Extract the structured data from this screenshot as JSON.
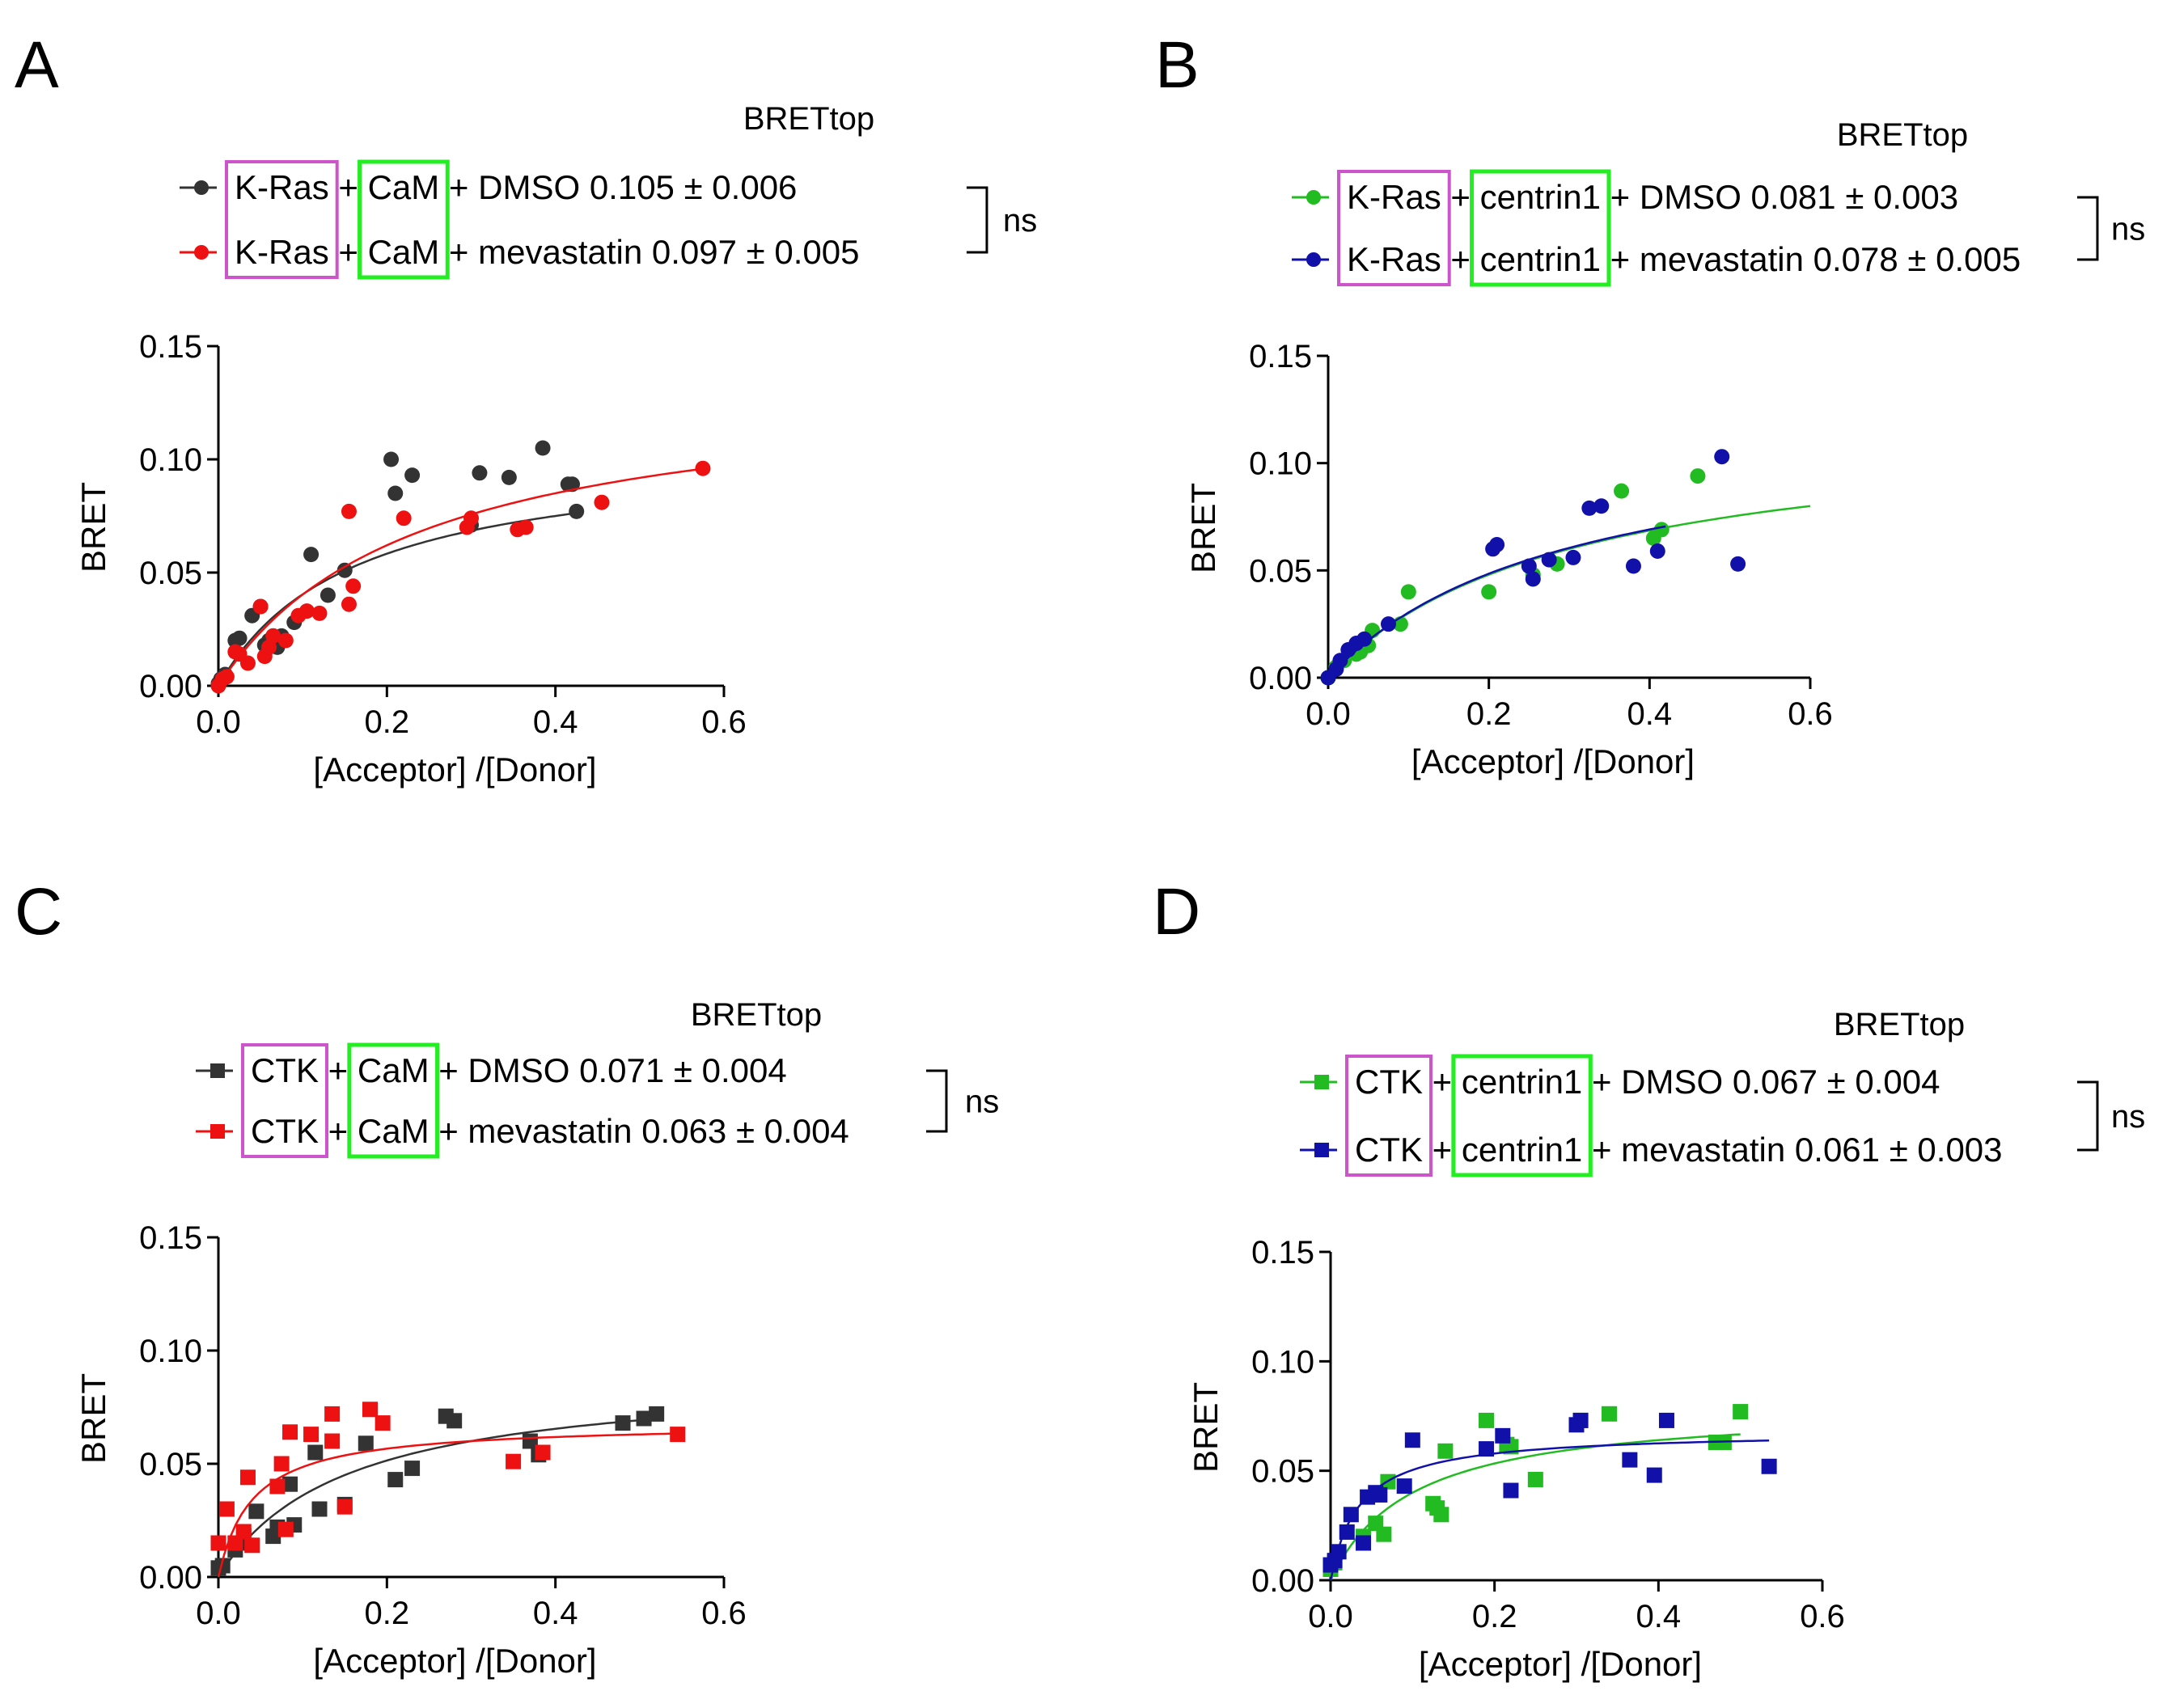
{
  "figure": {
    "axis_label_x": "[Acceptor] /[Donor]",
    "axis_label_y": "BRET",
    "column_label": "BRETtop",
    "significance": "ns"
  },
  "chart_data": [
    {
      "panel": "A",
      "type": "scatter",
      "title": "BRETtop",
      "xlabel": "[Acceptor] /[Donor]",
      "ylabel": "BRET",
      "xlim": [
        0,
        0.6
      ],
      "ylim": [
        0,
        0.15
      ],
      "xticks": [
        "0.0",
        "0.2",
        "0.4",
        "0.6"
      ],
      "yticks": [
        "0.00",
        "0.05",
        "0.10",
        "0.15"
      ],
      "marker": "circle",
      "significance": "ns",
      "legend": [
        {
          "donor": "K-Ras",
          "sep1": "+",
          "acceptor": "CaM",
          "treatment": "+ DMSO",
          "brettop": "0.105 ± 0.006"
        },
        {
          "donor": "K-Ras",
          "sep1": "+",
          "acceptor": "CaM",
          "treatment": "+ mevastatin",
          "brettop": "0.097 ± 0.005"
        }
      ],
      "series": [
        {
          "name": "K-Ras + CaM + DMSO",
          "color": "#333333",
          "fit": {
            "bmax": 0.105,
            "kd": 0.16,
            "xmax": 0.42
          },
          "points": [
            [
              0.0,
              0.001
            ],
            [
              0.003,
              0.003
            ],
            [
              0.008,
              0.005
            ],
            [
              0.02,
              0.02
            ],
            [
              0.025,
              0.021
            ],
            [
              0.04,
              0.031
            ],
            [
              0.05,
              0.035
            ],
            [
              0.055,
              0.018
            ],
            [
              0.06,
              0.02
            ],
            [
              0.065,
              0.022
            ],
            [
              0.07,
              0.017
            ],
            [
              0.075,
              0.022
            ],
            [
              0.09,
              0.028
            ],
            [
              0.11,
              0.058
            ],
            [
              0.13,
              0.04
            ],
            [
              0.15,
              0.051
            ],
            [
              0.205,
              0.1
            ],
            [
              0.21,
              0.085
            ],
            [
              0.23,
              0.093
            ],
            [
              0.3,
              0.071
            ],
            [
              0.31,
              0.094
            ],
            [
              0.345,
              0.092
            ],
            [
              0.385,
              0.105
            ],
            [
              0.415,
              0.089
            ],
            [
              0.42,
              0.089
            ],
            [
              0.425,
              0.077
            ]
          ]
        },
        {
          "name": "K-Ras + CaM + mevastatin",
          "color": "#ee1111",
          "fit": {
            "bmax": 0.135,
            "kd": 0.235,
            "xmax": 0.58
          },
          "points": [
            [
              0.0,
              0.0
            ],
            [
              0.005,
              0.003
            ],
            [
              0.01,
              0.004
            ],
            [
              0.02,
              0.015
            ],
            [
              0.025,
              0.014
            ],
            [
              0.035,
              0.01
            ],
            [
              0.05,
              0.035
            ],
            [
              0.055,
              0.013
            ],
            [
              0.06,
              0.017
            ],
            [
              0.065,
              0.022
            ],
            [
              0.08,
              0.02
            ],
            [
              0.095,
              0.031
            ],
            [
              0.105,
              0.033
            ],
            [
              0.12,
              0.032
            ],
            [
              0.155,
              0.077
            ],
            [
              0.155,
              0.036
            ],
            [
              0.16,
              0.044
            ],
            [
              0.22,
              0.074
            ],
            [
              0.295,
              0.07
            ],
            [
              0.3,
              0.074
            ],
            [
              0.355,
              0.069
            ],
            [
              0.365,
              0.07
            ],
            [
              0.455,
              0.081
            ],
            [
              0.575,
              0.096
            ]
          ]
        }
      ]
    },
    {
      "panel": "B",
      "type": "scatter",
      "title": "BRETtop",
      "xlabel": "[Acceptor] /[Donor]",
      "ylabel": "BRET",
      "xlim": [
        0,
        0.6
      ],
      "ylim": [
        0,
        0.15
      ],
      "xticks": [
        "0.0",
        "0.2",
        "0.4",
        "0.6"
      ],
      "yticks": [
        "0.00",
        "0.05",
        "0.10",
        "0.15"
      ],
      "marker": "circle",
      "significance": "ns",
      "legend": [
        {
          "donor": "K-Ras",
          "sep1": "+",
          "acceptor": "centrin1",
          "treatment": "+ DMSO",
          "brettop": "0.081 ± 0.003"
        },
        {
          "donor": "K-Ras",
          "sep1": "+",
          "acceptor": "centrin1",
          "treatment": "+ mevastatin",
          "brettop": "0.078 ± 0.005"
        }
      ],
      "series": [
        {
          "name": "K-Ras + centrin1 + DMSO",
          "color": "#22bb22",
          "fit": {
            "bmax": 0.12,
            "kd": 0.3,
            "xmax": 0.6
          },
          "points": [
            [
              0.0,
              0.0
            ],
            [
              0.01,
              0.005
            ],
            [
              0.02,
              0.008
            ],
            [
              0.035,
              0.011
            ],
            [
              0.04,
              0.012
            ],
            [
              0.05,
              0.015
            ],
            [
              0.055,
              0.022
            ],
            [
              0.09,
              0.025
            ],
            [
              0.1,
              0.04
            ],
            [
              0.2,
              0.04
            ],
            [
              0.255,
              0.048
            ],
            [
              0.285,
              0.053
            ],
            [
              0.365,
              0.087
            ],
            [
              0.405,
              0.065
            ],
            [
              0.415,
              0.069
            ],
            [
              0.46,
              0.094
            ]
          ]
        },
        {
          "name": "K-Ras + centrin1 + mevastatin",
          "color": "#1111aa",
          "fit": {
            "bmax": 0.12,
            "kd": 0.295,
            "xmax": 0.42
          },
          "points": [
            [
              0.0,
              0.0
            ],
            [
              0.01,
              0.004
            ],
            [
              0.015,
              0.008
            ],
            [
              0.025,
              0.013
            ],
            [
              0.035,
              0.016
            ],
            [
              0.045,
              0.018
            ],
            [
              0.075,
              0.025
            ],
            [
              0.205,
              0.06
            ],
            [
              0.21,
              0.062
            ],
            [
              0.25,
              0.052
            ],
            [
              0.255,
              0.046
            ],
            [
              0.275,
              0.055
            ],
            [
              0.305,
              0.056
            ],
            [
              0.325,
              0.079
            ],
            [
              0.34,
              0.08
            ],
            [
              0.38,
              0.052
            ],
            [
              0.41,
              0.059
            ],
            [
              0.49,
              0.103
            ],
            [
              0.51,
              0.053
            ]
          ]
        }
      ]
    },
    {
      "panel": "C",
      "type": "scatter",
      "title": "BRETtop",
      "xlabel": "[Acceptor] /[Donor]",
      "ylabel": "BRET",
      "xlim": [
        0,
        0.6
      ],
      "ylim": [
        0,
        0.15
      ],
      "xticks": [
        "0.0",
        "0.2",
        "0.4",
        "0.6"
      ],
      "yticks": [
        "0.00",
        "0.05",
        "0.10",
        "0.15"
      ],
      "marker": "square",
      "significance": "ns",
      "legend": [
        {
          "donor": "CTK",
          "sep1": "+",
          "acceptor": "CaM",
          "treatment": "+ DMSO",
          "brettop": "0.071 ± 0.004"
        },
        {
          "donor": "CTK",
          "sep1": "+",
          "acceptor": "CaM",
          "treatment": "+ mevastatin",
          "brettop": "0.063 ± 0.004"
        }
      ],
      "series": [
        {
          "name": "CTK + CaM + DMSO",
          "color": "#333333",
          "fit": {
            "bmax": 0.09,
            "kd": 0.15,
            "xmax": 0.52
          },
          "points": [
            [
              0.0,
              0.004
            ],
            [
              0.005,
              0.005
            ],
            [
              0.02,
              0.012
            ],
            [
              0.025,
              0.015
            ],
            [
              0.03,
              0.018
            ],
            [
              0.045,
              0.029
            ],
            [
              0.065,
              0.018
            ],
            [
              0.07,
              0.022
            ],
            [
              0.085,
              0.041
            ],
            [
              0.09,
              0.023
            ],
            [
              0.115,
              0.055
            ],
            [
              0.12,
              0.03
            ],
            [
              0.15,
              0.032
            ],
            [
              0.175,
              0.059
            ],
            [
              0.21,
              0.043
            ],
            [
              0.23,
              0.048
            ],
            [
              0.27,
              0.071
            ],
            [
              0.28,
              0.069
            ],
            [
              0.37,
              0.06
            ],
            [
              0.38,
              0.054
            ],
            [
              0.48,
              0.068
            ],
            [
              0.505,
              0.07
            ],
            [
              0.52,
              0.072
            ]
          ]
        },
        {
          "name": "CTK + CaM + mevastatin",
          "color": "#ee1111",
          "fit": {
            "bmax": 0.068,
            "kd": 0.04,
            "xmax": 0.55
          },
          "points": [
            [
              0.0,
              0.015
            ],
            [
              0.01,
              0.03
            ],
            [
              0.02,
              0.015
            ],
            [
              0.03,
              0.02
            ],
            [
              0.035,
              0.044
            ],
            [
              0.04,
              0.014
            ],
            [
              0.07,
              0.04
            ],
            [
              0.075,
              0.05
            ],
            [
              0.08,
              0.021
            ],
            [
              0.085,
              0.064
            ],
            [
              0.11,
              0.063
            ],
            [
              0.135,
              0.06
            ],
            [
              0.135,
              0.072
            ],
            [
              0.15,
              0.031
            ],
            [
              0.18,
              0.074
            ],
            [
              0.195,
              0.068
            ],
            [
              0.35,
              0.051
            ],
            [
              0.385,
              0.055
            ],
            [
              0.545,
              0.063
            ]
          ]
        }
      ]
    },
    {
      "panel": "D",
      "type": "scatter",
      "title": "BRETtop",
      "xlabel": "[Acceptor] /[Donor]",
      "ylabel": "BRET",
      "xlim": [
        0,
        0.6
      ],
      "ylim": [
        0,
        0.15
      ],
      "xticks": [
        "0.0",
        "0.2",
        "0.4",
        "0.6"
      ],
      "yticks": [
        "0.00",
        "0.05",
        "0.10",
        "0.15"
      ],
      "marker": "square",
      "significance": "ns",
      "legend": [
        {
          "donor": "CTK",
          "sep1": "+",
          "acceptor": "centrin1",
          "treatment": "+ DMSO",
          "brettop": "0.067 ± 0.004"
        },
        {
          "donor": "CTK",
          "sep1": "+",
          "acceptor": "centrin1",
          "treatment": "+ mevastatin",
          "brettop": "0.061 ± 0.003"
        }
      ],
      "series": [
        {
          "name": "CTK + centrin1 + DMSO",
          "color": "#22bb22",
          "fit": {
            "bmax": 0.08,
            "kd": 0.1,
            "xmax": 0.5
          },
          "points": [
            [
              0.0,
              0.005
            ],
            [
              0.005,
              0.008
            ],
            [
              0.04,
              0.02
            ],
            [
              0.055,
              0.026
            ],
            [
              0.065,
              0.021
            ],
            [
              0.07,
              0.045
            ],
            [
              0.125,
              0.035
            ],
            [
              0.13,
              0.033
            ],
            [
              0.135,
              0.03
            ],
            [
              0.14,
              0.059
            ],
            [
              0.19,
              0.073
            ],
            [
              0.215,
              0.062
            ],
            [
              0.22,
              0.061
            ],
            [
              0.25,
              0.046
            ],
            [
              0.305,
              0.073
            ],
            [
              0.34,
              0.076
            ],
            [
              0.47,
              0.063
            ],
            [
              0.48,
              0.063
            ],
            [
              0.5,
              0.077
            ]
          ]
        },
        {
          "name": "CTK + centrin1 + mevastatin",
          "color": "#1111aa",
          "fit": {
            "bmax": 0.068,
            "kd": 0.035,
            "xmax": 0.535
          },
          "points": [
            [
              0.0,
              0.007
            ],
            [
              0.005,
              0.009
            ],
            [
              0.01,
              0.013
            ],
            [
              0.02,
              0.022
            ],
            [
              0.025,
              0.03
            ],
            [
              0.04,
              0.017
            ],
            [
              0.045,
              0.038
            ],
            [
              0.055,
              0.04
            ],
            [
              0.06,
              0.039
            ],
            [
              0.09,
              0.043
            ],
            [
              0.1,
              0.064
            ],
            [
              0.19,
              0.06
            ],
            [
              0.21,
              0.066
            ],
            [
              0.22,
              0.041
            ],
            [
              0.3,
              0.071
            ],
            [
              0.305,
              0.073
            ],
            [
              0.365,
              0.055
            ],
            [
              0.395,
              0.048
            ],
            [
              0.41,
              0.073
            ],
            [
              0.535,
              0.052
            ]
          ]
        }
      ]
    }
  ]
}
